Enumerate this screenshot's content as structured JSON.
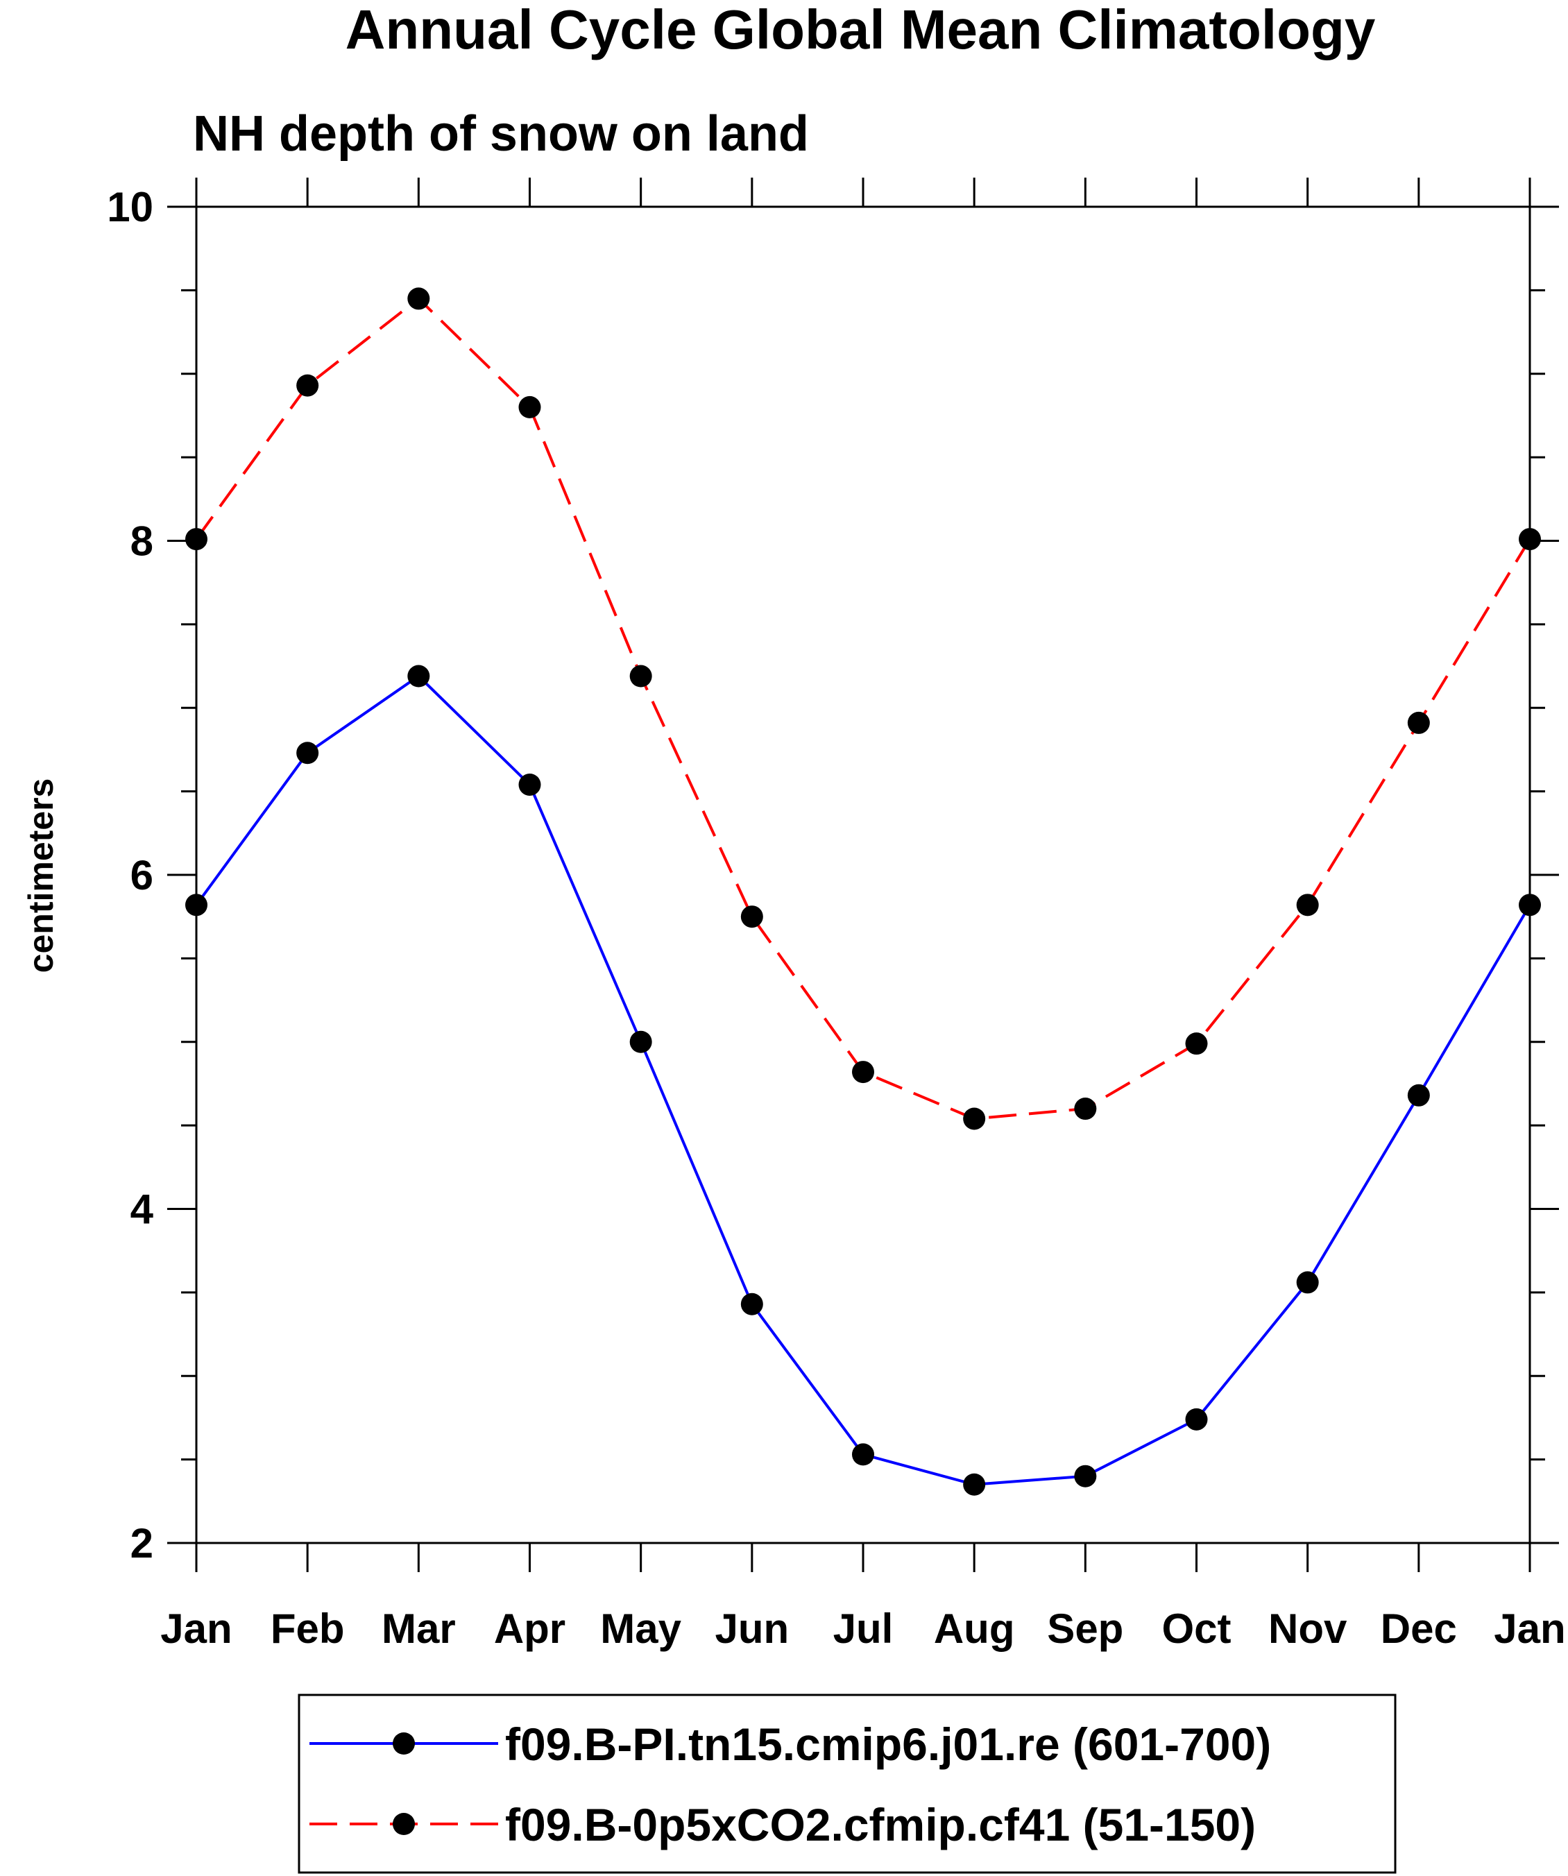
{
  "chart_data": {
    "type": "line",
    "title": "Annual Cycle Global Mean Climatology",
    "subtitle": "NH depth of snow on land",
    "xlabel": "",
    "ylabel": "centimeters",
    "categories": [
      "Jan",
      "Feb",
      "Mar",
      "Apr",
      "May",
      "Jun",
      "Jul",
      "Aug",
      "Sep",
      "Oct",
      "Nov",
      "Dec",
      "Jan"
    ],
    "ylim": [
      2,
      10
    ],
    "yticks": [
      2,
      4,
      6,
      8,
      10
    ],
    "legend_position": "bottom",
    "series": [
      {
        "name": "f09.B-PI.tn15.cmip6.j01.re (601-700)",
        "color": "#0000ff",
        "dash": "solid",
        "marker": "filled-circle",
        "values": [
          5.82,
          6.73,
          7.19,
          6.54,
          5.0,
          3.43,
          2.53,
          2.35,
          2.4,
          2.74,
          3.56,
          4.68,
          5.82
        ]
      },
      {
        "name": "f09.B-0p5xCO2.cfmip.cf41 (51-150)",
        "color": "#ff0000",
        "dash": "dashed",
        "marker": "filled-circle",
        "values": [
          8.01,
          8.93,
          9.45,
          8.8,
          7.19,
          5.75,
          4.82,
          4.54,
          4.6,
          4.99,
          5.82,
          6.91,
          8.01
        ]
      }
    ]
  }
}
